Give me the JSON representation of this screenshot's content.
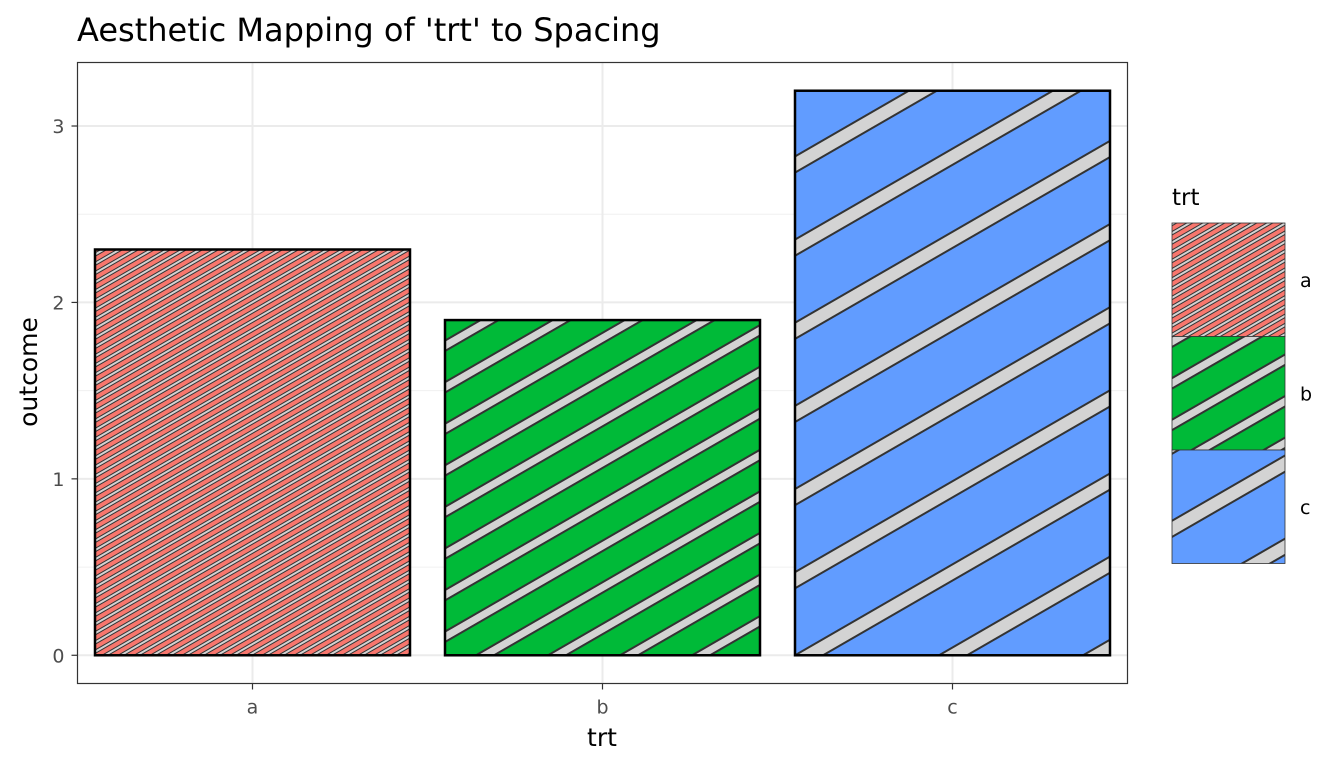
{
  "chart_data": {
    "type": "bar",
    "title": "Aesthetic Mapping of 'trt' to Spacing",
    "xlabel": "trt",
    "ylabel": "outcome",
    "categories": [
      "a",
      "b",
      "c"
    ],
    "values": [
      2.3,
      1.9,
      3.2
    ],
    "ylim": [
      -0.16,
      3.36
    ],
    "yticks": [
      0,
      1,
      2,
      3
    ],
    "grid": true,
    "fill_colors": [
      "#F8766D",
      "#00BA38",
      "#619CFF"
    ],
    "stripe_color": "#d3d3d3",
    "pattern": "stripe",
    "pattern_spacing": "mapped to trt: a tightest, c widest",
    "legend": {
      "title": "trt",
      "entries": [
        "a",
        "b",
        "c"
      ],
      "position": "right"
    }
  }
}
